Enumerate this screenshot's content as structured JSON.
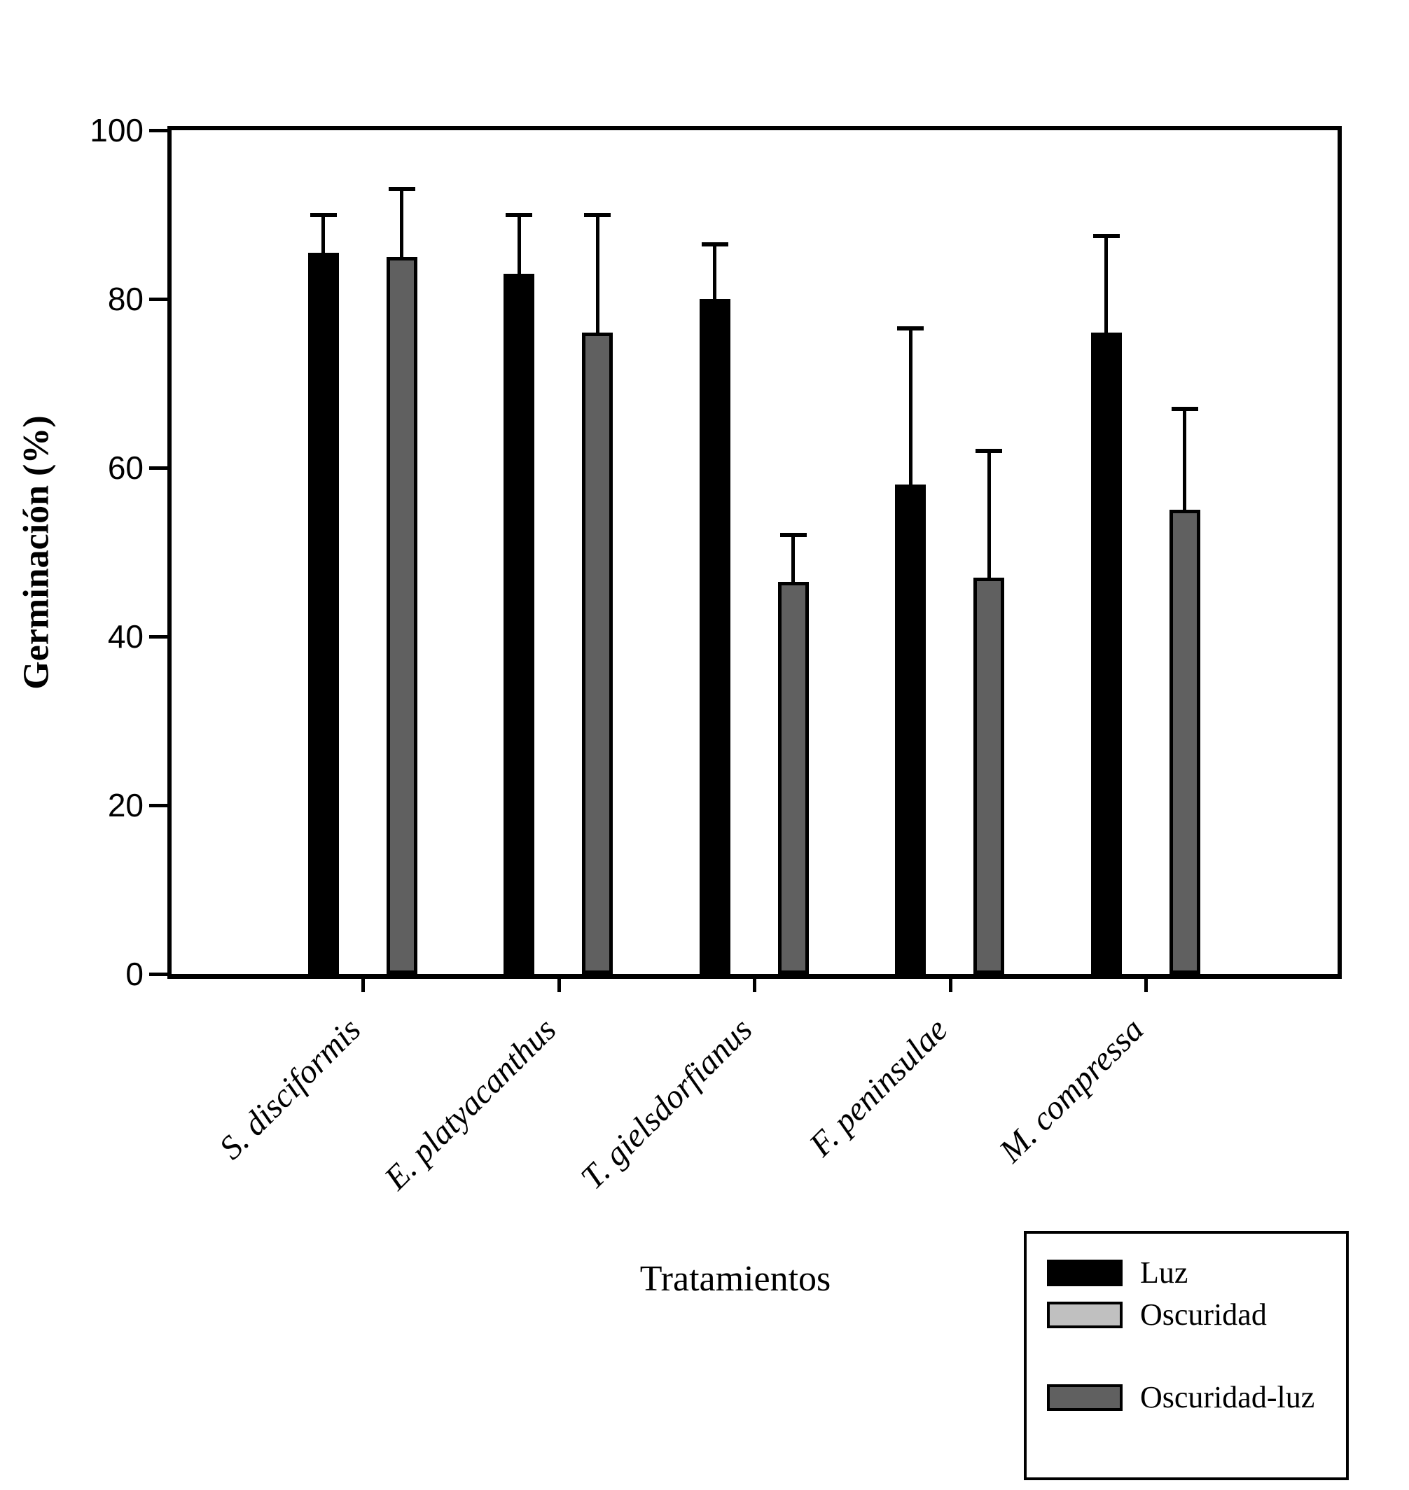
{
  "figure": {
    "y_axis": {
      "title": "Germinación (%)",
      "tick_labels": [
        "0",
        "20",
        "40",
        "60",
        "80",
        "100"
      ]
    },
    "x_axis": {
      "title": "Tratamientos"
    },
    "legend": {
      "items": [
        {
          "label": "Luz",
          "color": "#000000"
        },
        {
          "label": "Oscuridad",
          "color": "#c0c0c0"
        },
        {
          "label": "Oscuridad-luz",
          "color": "#606060"
        }
      ]
    }
  },
  "chart_data": {
    "type": "bar",
    "title": "",
    "categories": [
      "S. disciformis",
      "E. platyacanthus",
      "T. gielsdorfianus",
      "F. peninsulae",
      "M. compressa"
    ],
    "series": [
      {
        "name": "Luz",
        "color": "#000000",
        "values": [
          85.5,
          83,
          80,
          58,
          76
        ],
        "error_plus": [
          4.5,
          7,
          6.5,
          18.5,
          11.5
        ]
      },
      {
        "name": "Oscuridad",
        "color": "#c0c0c0",
        "values": [
          0,
          0,
          0,
          0,
          0
        ],
        "error_plus": [
          0,
          0,
          0,
          0,
          0
        ]
      },
      {
        "name": "Oscuridad-luz",
        "color": "#606060",
        "values": [
          85,
          76,
          46.5,
          47,
          55
        ],
        "error_plus": [
          8,
          14,
          5.5,
          15,
          12
        ]
      }
    ],
    "xlabel": "Tratamientos",
    "ylabel": "Germinación (%)",
    "ylim": [
      0,
      100
    ],
    "yticks": [
      0,
      20,
      40,
      60,
      80,
      100
    ],
    "grid": false,
    "error_bars": "plus_only",
    "legend_position": "bottom-right"
  }
}
